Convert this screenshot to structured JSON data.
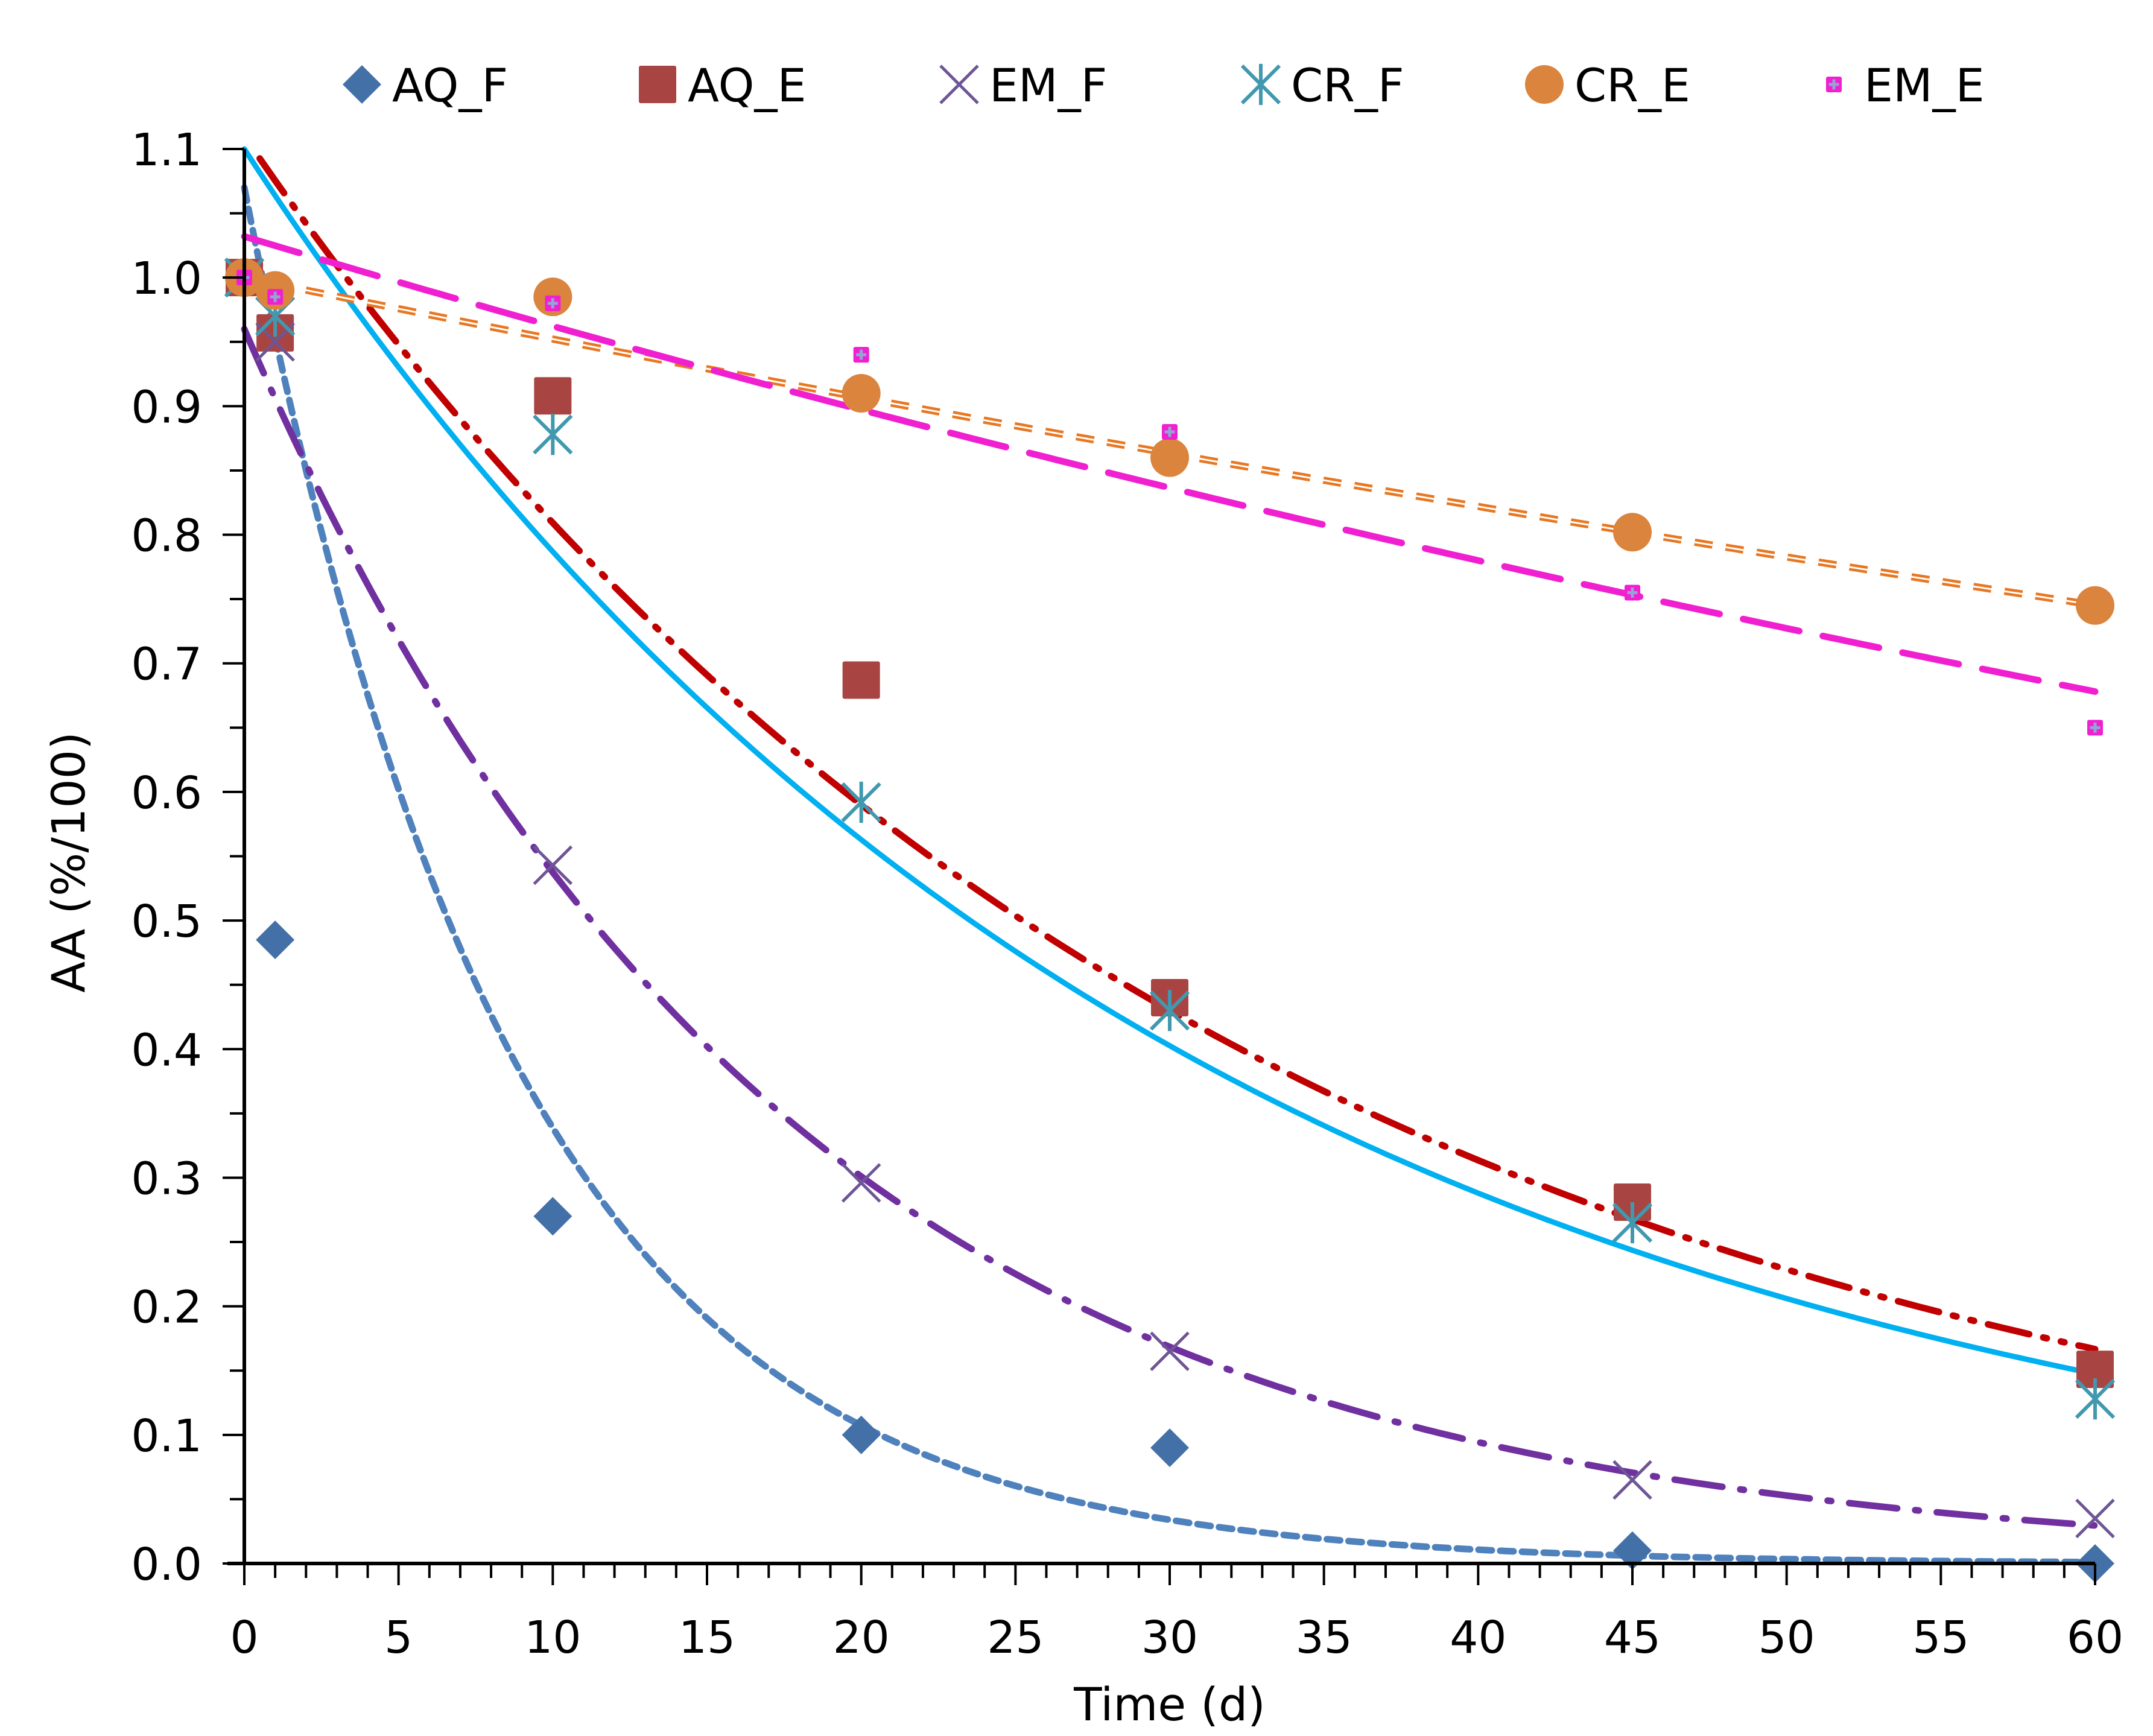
{
  "chart_data": {
    "type": "scatter",
    "title": "",
    "xlabel": "Time (d)",
    "ylabel": "AA (%/100)",
    "xlim": [
      0,
      60
    ],
    "ylim": [
      0,
      1.1
    ],
    "x_ticks": [
      0,
      5,
      10,
      15,
      20,
      25,
      30,
      35,
      40,
      45,
      50,
      55,
      60
    ],
    "x_tick_labels": [
      "0",
      "5",
      "10",
      "15",
      "20",
      "25",
      "30",
      "35",
      "40",
      "45",
      "50",
      "55",
      "60"
    ],
    "x_minor_step": 1,
    "y_ticks": [
      0,
      0.1,
      0.2,
      0.3,
      0.4,
      0.5,
      0.6,
      0.7,
      0.8,
      0.9,
      1.0,
      1.1
    ],
    "y_tick_labels": [
      "0.0",
      "0.1",
      "0.2",
      "0.3",
      "0.4",
      "0.5",
      "0.6",
      "0.7",
      "0.8",
      "0.9",
      "1.0",
      "1.1"
    ],
    "y_minor_step": 0.05,
    "grid": false,
    "legend_position": "top",
    "x": [
      0,
      1,
      10,
      20,
      30,
      45,
      60
    ],
    "series": [
      {
        "name": "AQ_F",
        "marker": "diamond",
        "color": "#4470A8",
        "values": [
          1.0,
          0.485,
          0.27,
          0.1,
          0.09,
          0.01,
          0.0
        ],
        "trendline": {
          "type": "exponential",
          "a": 1.07,
          "b": -0.115,
          "style": "short-dash",
          "color": "#4F81BD"
        }
      },
      {
        "name": "AQ_E",
        "marker": "square",
        "color": "#A84542",
        "values": [
          1.0,
          0.957,
          0.908,
          0.687,
          0.44,
          0.281,
          0.151
        ],
        "trendline": {
          "type": "exponential",
          "a": 1.11,
          "b": -0.0316,
          "style": "long-dash-dot-dot",
          "color": "#C00000"
        }
      },
      {
        "name": "EM_F",
        "marker": "x",
        "color": "#6E5596",
        "values": [
          1.0,
          0.95,
          0.543,
          0.296,
          0.165,
          0.065,
          0.035
        ],
        "trendline": {
          "type": "exponential",
          "a": 0.96,
          "b": -0.058,
          "style": "long-dash-dot",
          "color": "#7030A0"
        }
      },
      {
        "name": "CR_F",
        "marker": "asterisk",
        "color": "#4198AF",
        "values": [
          1.0,
          0.97,
          0.878,
          0.592,
          0.43,
          0.265,
          0.128
        ],
        "trendline": {
          "type": "exponential",
          "a": 1.1,
          "b": -0.0335,
          "style": "solid",
          "color": "#00B0F0"
        }
      },
      {
        "name": "CR_E",
        "marker": "circle",
        "color": "#DB843D",
        "values": [
          1.0,
          0.99,
          0.985,
          0.91,
          0.86,
          0.802,
          0.745
        ],
        "trendline": {
          "type": "exponential",
          "a": 1.0,
          "b": -0.0049,
          "style": "triple-dash",
          "color": "#E87722"
        }
      },
      {
        "name": "EM_E",
        "marker": "plus-square",
        "color": "#F020D0",
        "values": [
          1.0,
          0.985,
          0.98,
          0.94,
          0.88,
          0.755,
          0.65
        ],
        "trendline": {
          "type": "exponential",
          "a": 1.032,
          "b": -0.007,
          "style": "long-dash",
          "color": "#F020D0"
        }
      }
    ]
  }
}
